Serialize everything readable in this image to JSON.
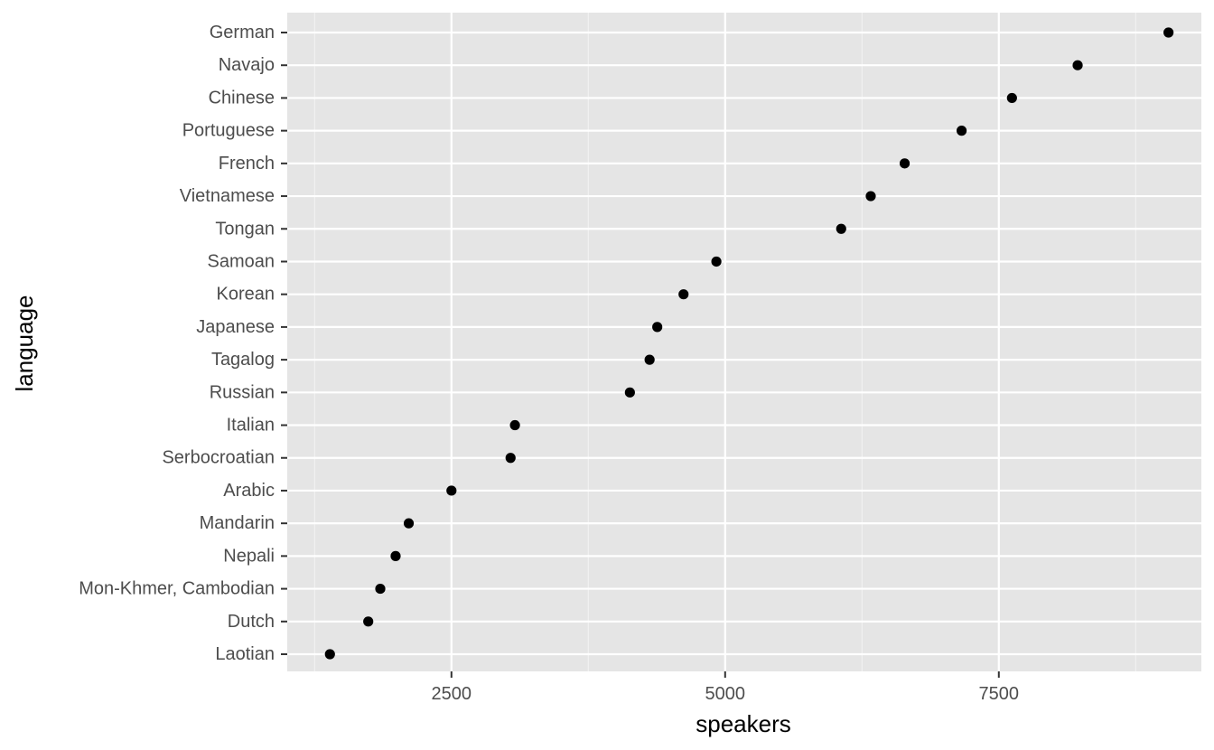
{
  "chart_data": {
    "type": "scatter",
    "title": "",
    "xlabel": "speakers",
    "ylabel": "language",
    "xlim": [
      1000,
      9350
    ],
    "x_ticks": [
      2500,
      5000,
      7500
    ],
    "x_tick_labels": [
      "2500",
      "5000",
      "7500"
    ],
    "grid": true,
    "categories": [
      "German",
      "Navajo",
      "Chinese",
      "Portuguese",
      "French",
      "Vietnamese",
      "Tongan",
      "Samoan",
      "Korean",
      "Japanese",
      "Tagalog",
      "Russian",
      "Italian",
      "Serbocroatian",
      "Arabic",
      "Mandarin",
      "Nepali",
      "Mon-Khmer, Cambodian",
      "Dutch",
      "Laotian"
    ],
    "values": [
      9050,
      8220,
      7620,
      7160,
      6640,
      6330,
      6060,
      4920,
      4620,
      4380,
      4310,
      4130,
      3080,
      3040,
      2500,
      2110,
      1990,
      1850,
      1740,
      1390
    ],
    "point_color": "#000000",
    "panel_color": "#e5e5e5"
  }
}
